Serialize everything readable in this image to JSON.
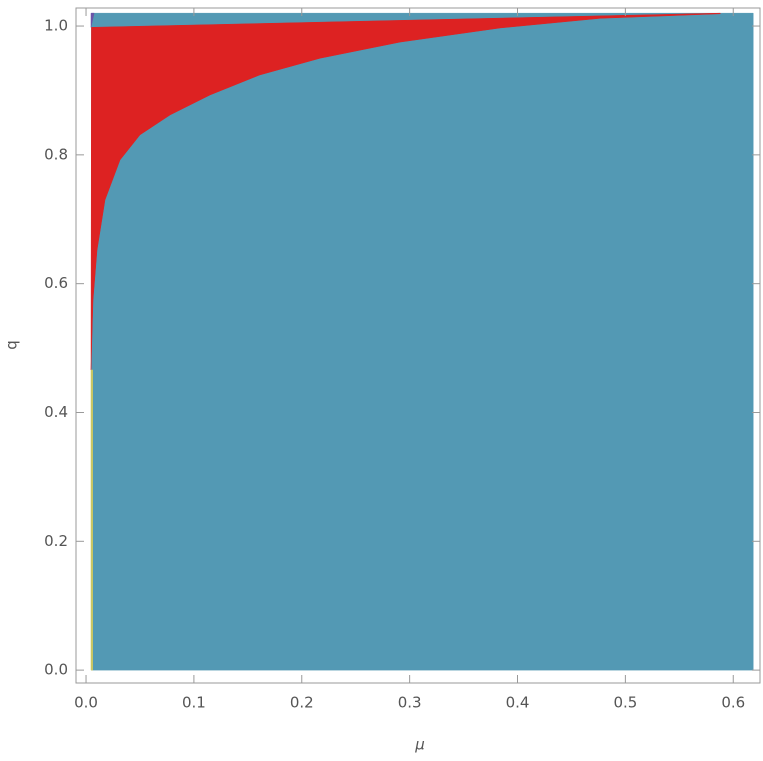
{
  "chart_data": {
    "type": "region",
    "x_label": "μ",
    "y_label": "q",
    "xlim": [
      -0.0093,
      0.6248
    ],
    "ylim": [
      -0.02,
      1.028
    ],
    "xticks": [
      {
        "value": 0,
        "label": "0.0"
      },
      0.1,
      0.2,
      0.3,
      0.4,
      0.5,
      0.6
    ],
    "yticks": [
      {
        "value": 0,
        "label": "0.0"
      },
      0.2,
      0.4,
      0.6,
      0.8,
      {
        "value": 1,
        "label": "1.0"
      }
    ],
    "series": [
      {
        "color": "#5399b4",
        "x": [
          0.005,
          0.6185,
          0.6185,
          0.005
        ],
        "values": [
          0,
          0,
          1.02,
          1.02
        ]
      },
      {
        "color": "#dd2222",
        "x": [
          0.0046,
          0.0065,
          0.0102,
          0.0176,
          0.0315,
          0.05,
          0.078,
          0.115,
          0.161,
          0.217,
          0.291,
          0.384,
          0.477,
          0.588,
          0.588,
          0.005
        ],
        "values": [
          0.466,
          0.575,
          0.652,
          0.73,
          0.792,
          0.831,
          0.862,
          0.893,
          0.924,
          0.95,
          0.975,
          0.997,
          1.012,
          1.019,
          1.02,
          0.998
        ]
      },
      {
        "color": "#6a55a8",
        "x": [
          0.0046,
          0.0075,
          0.0046
        ],
        "values": [
          1.02,
          1.02,
          0.998
        ]
      },
      {
        "color": "#c9c663",
        "x": [
          0.0046,
          0.0062,
          0.0062,
          0.0046
        ],
        "values": [
          0,
          0,
          0.466,
          0.466
        ]
      }
    ]
  }
}
